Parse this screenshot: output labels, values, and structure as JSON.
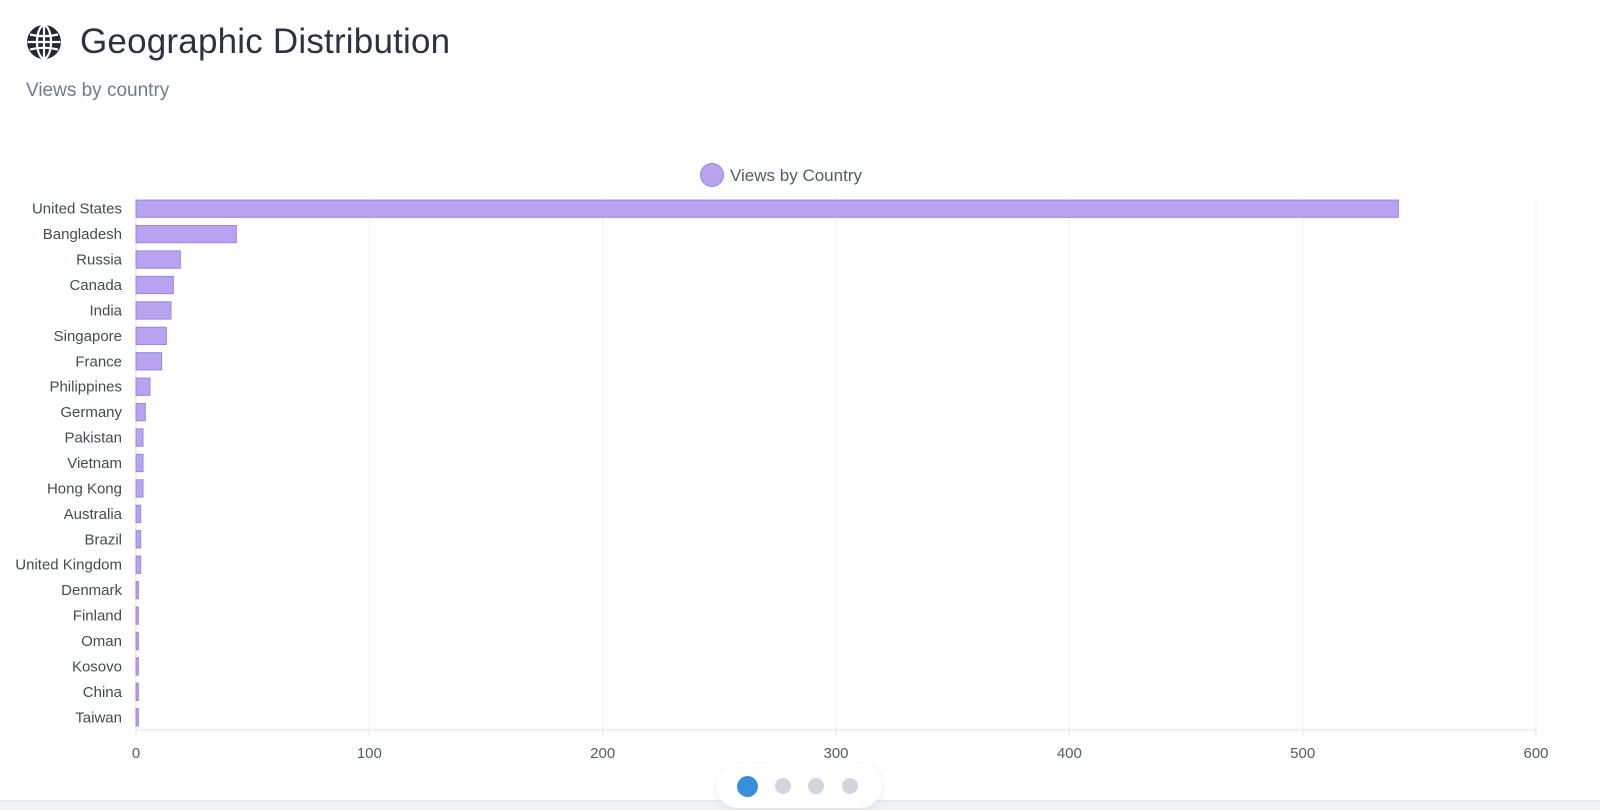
{
  "header": {
    "title": "Geographic Distribution",
    "subtitle": "Views by country",
    "icon": "globe-icon"
  },
  "colors": {
    "bar_fill": "#b7a3ef",
    "bar_stroke": "#9c85e3",
    "active_dot": "#3a8fdd",
    "inactive_dot": "#cfd6e0"
  },
  "pager": {
    "pages": 4,
    "active": 0
  },
  "chart_data": {
    "type": "bar",
    "orientation": "horizontal",
    "legend": "top-center",
    "grid": true,
    "categories": [
      "United States",
      "Bangladesh",
      "Russia",
      "Canada",
      "India",
      "Singapore",
      "France",
      "Philippines",
      "Germany",
      "Pakistan",
      "Vietnam",
      "Hong Kong",
      "Australia",
      "Brazil",
      "United Kingdom",
      "Denmark",
      "Finland",
      "Oman",
      "Kosovo",
      "China",
      "Taiwan"
    ],
    "series": [
      {
        "name": "Views by Country",
        "values": [
          541,
          43,
          19,
          16,
          15,
          13,
          11,
          6,
          4,
          3,
          3,
          3,
          2,
          2,
          2,
          1,
          1,
          1,
          1,
          1,
          1
        ]
      }
    ],
    "xlim": [
      0,
      600
    ],
    "xticks": [
      "0",
      "100",
      "200",
      "300",
      "400",
      "500",
      "600"
    ],
    "title": "",
    "xlabel": "",
    "ylabel": ""
  }
}
